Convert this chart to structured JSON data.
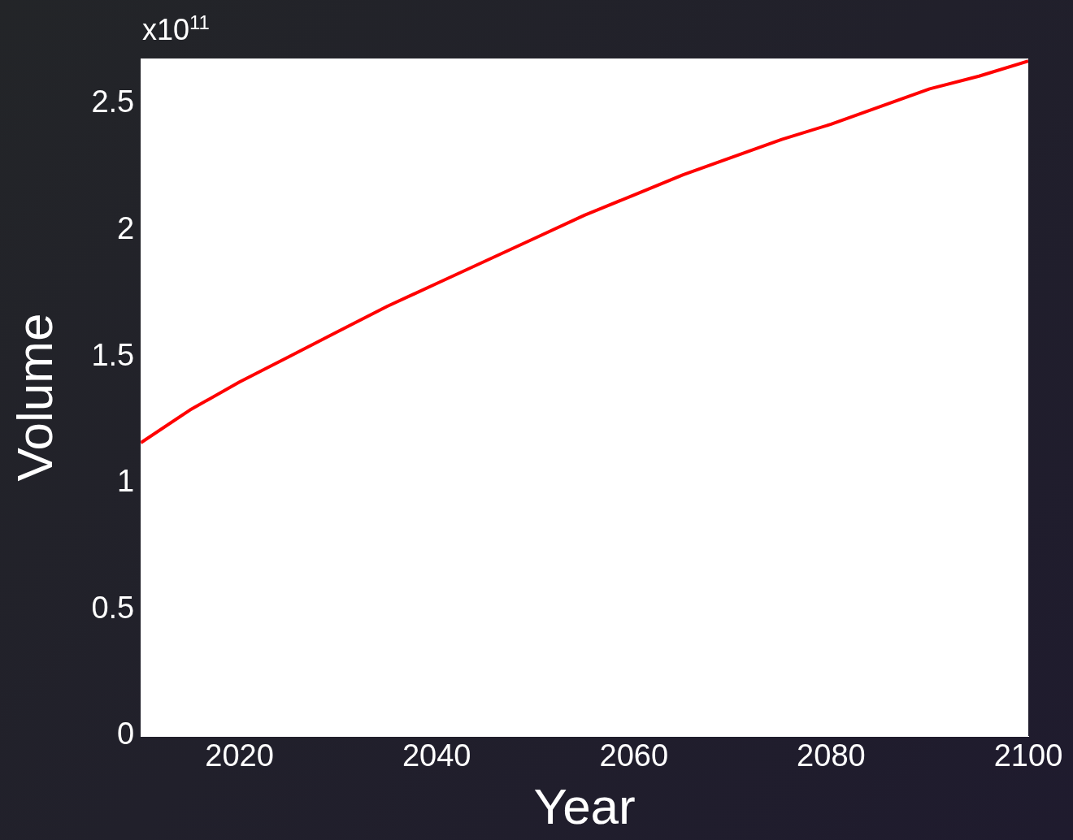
{
  "chart_data": {
    "type": "line",
    "xlabel": "Year",
    "ylabel": "Volume",
    "annotations": [
      "x10$^{11}$"
    ],
    "x": [
      2010,
      2015,
      2020,
      2025,
      2030,
      2035,
      2040,
      2045,
      2050,
      2055,
      2060,
      2065,
      2070,
      2075,
      2080,
      2085,
      2090,
      2095,
      2100
    ],
    "series": [
      {
        "color": "#ff0000",
        "values": [
          1.16,
          1.29,
          1.4,
          1.5,
          1.6,
          1.7,
          1.79,
          1.88,
          1.97,
          2.06,
          2.14,
          2.22,
          2.29,
          2.36,
          2.42,
          2.49,
          2.56,
          2.61,
          2.67
        ]
      }
    ],
    "xlim": [
      2010,
      2100
    ],
    "xticks": [
      2020,
      2040,
      2060,
      2080,
      2100
    ],
    "ylim": [
      0,
      2.68
    ],
    "yticks": [
      0,
      0.5,
      1,
      1.5,
      2,
      2.5
    ],
    "grid": false,
    "legend": false,
    "marker": "none",
    "line_style": "solid"
  }
}
